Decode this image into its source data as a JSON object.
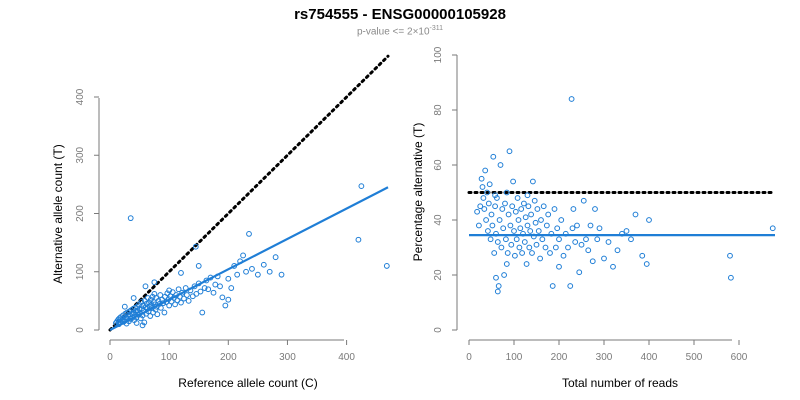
{
  "title": "rs754555 - ENSG00000105928",
  "subtitle": {
    "prefix": "p-value <= 2×10",
    "exponent": "-311"
  },
  "colors": {
    "points": "#1f7ed6",
    "fit": "#1f7ed6",
    "reference": "#000000"
  },
  "chart_data": [
    {
      "type": "scatter",
      "xlabel": "Reference allele count (C)",
      "ylabel": "Alternative allele count (T)",
      "xlim": [
        0,
        470
      ],
      "ylim": [
        0,
        400
      ],
      "xticks": [
        0,
        100,
        200,
        300,
        400
      ],
      "yticks": [
        0,
        100,
        200,
        300,
        400
      ],
      "reference_line": {
        "style": "dotted",
        "slope": 1,
        "intercept": 0,
        "x_range": [
          0,
          470
        ]
      },
      "fit_line": {
        "style": "solid",
        "x": [
          0,
          470
        ],
        "y": [
          0,
          245
        ]
      },
      "points": [
        [
          10,
          12
        ],
        [
          12,
          15
        ],
        [
          14,
          18
        ],
        [
          15,
          14
        ],
        [
          16,
          20
        ],
        [
          17,
          13
        ],
        [
          18,
          22
        ],
        [
          20,
          16
        ],
        [
          21,
          19
        ],
        [
          22,
          25
        ],
        [
          23,
          14
        ],
        [
          25,
          18
        ],
        [
          26,
          28
        ],
        [
          27,
          22
        ],
        [
          28,
          11
        ],
        [
          29,
          30
        ],
        [
          30,
          20
        ],
        [
          31,
          26
        ],
        [
          32,
          15
        ],
        [
          33,
          32
        ],
        [
          34,
          24
        ],
        [
          35,
          19
        ],
        [
          36,
          34
        ],
        [
          37,
          28
        ],
        [
          38,
          21
        ],
        [
          39,
          36
        ],
        [
          40,
          30
        ],
        [
          41,
          17
        ],
        [
          42,
          38
        ],
        [
          43,
          27
        ],
        [
          44,
          33
        ],
        [
          45,
          22
        ],
        [
          46,
          40
        ],
        [
          47,
          31
        ],
        [
          48,
          26
        ],
        [
          49,
          44
        ],
        [
          50,
          35
        ],
        [
          51,
          29
        ],
        [
          52,
          20
        ],
        [
          53,
          48
        ],
        [
          54,
          37
        ],
        [
          55,
          25
        ],
        [
          56,
          42
        ],
        [
          57,
          33
        ],
        [
          58,
          13
        ],
        [
          59,
          50
        ],
        [
          60,
          39
        ],
        [
          61,
          28
        ],
        [
          62,
          45
        ],
        [
          63,
          36
        ],
        [
          64,
          55
        ],
        [
          65,
          32
        ],
        [
          66,
          47
        ],
        [
          67,
          41
        ],
        [
          68,
          24
        ],
        [
          69,
          52
        ],
        [
          70,
          43
        ],
        [
          71,
          38
        ],
        [
          72,
          57
        ],
        [
          73,
          30
        ],
        [
          74,
          48
        ],
        [
          75,
          62
        ],
        [
          76,
          44
        ],
        [
          77,
          35
        ],
        [
          78,
          55
        ],
        [
          79,
          40
        ],
        [
          80,
          27
        ],
        [
          82,
          50
        ],
        [
          84,
          45
        ],
        [
          85,
          60
        ],
        [
          86,
          38
        ],
        [
          88,
          52
        ],
        [
          90,
          46
        ],
        [
          92,
          30
        ],
        [
          93,
          57
        ],
        [
          95,
          48
        ],
        [
          97,
          63
        ],
        [
          99,
          53
        ],
        [
          100,
          42
        ],
        [
          102,
          58
        ],
        [
          104,
          49
        ],
        [
          106,
          65
        ],
        [
          108,
          55
        ],
        [
          110,
          44
        ],
        [
          112,
          60
        ],
        [
          114,
          51
        ],
        [
          116,
          70
        ],
        [
          118,
          57
        ],
        [
          120,
          47
        ],
        [
          122,
          64
        ],
        [
          125,
          54
        ],
        [
          128,
          72
        ],
        [
          130,
          60
        ],
        [
          133,
          50
        ],
        [
          136,
          68
        ],
        [
          140,
          58
        ],
        [
          143,
          75
        ],
        [
          146,
          62
        ],
        [
          150,
          80
        ],
        [
          153,
          66
        ],
        [
          156,
          30
        ],
        [
          160,
          72
        ],
        [
          163,
          85
        ],
        [
          166,
          70
        ],
        [
          170,
          90
        ],
        [
          175,
          64
        ],
        [
          178,
          78
        ],
        [
          182,
          92
        ],
        [
          186,
          75
        ],
        [
          190,
          56
        ],
        [
          195,
          42
        ],
        [
          200,
          88
        ],
        [
          205,
          72
        ],
        [
          210,
          110
        ],
        [
          215,
          95
        ],
        [
          220,
          118
        ],
        [
          225,
          128
        ],
        [
          230,
          100
        ],
        [
          235,
          165
        ],
        [
          240,
          105
        ],
        [
          250,
          95
        ],
        [
          260,
          112
        ],
        [
          270,
          100
        ],
        [
          280,
          125
        ],
        [
          290,
          95
        ],
        [
          35,
          192
        ],
        [
          145,
          143
        ],
        [
          150,
          110
        ],
        [
          100,
          68
        ],
        [
          120,
          98
        ],
        [
          200,
          52
        ],
        [
          420,
          155
        ],
        [
          425,
          247
        ],
        [
          468,
          110
        ],
        [
          25,
          40
        ],
        [
          40,
          55
        ],
        [
          60,
          75
        ],
        [
          75,
          82
        ],
        [
          15,
          10
        ],
        [
          45,
          12
        ],
        [
          55,
          8
        ]
      ]
    },
    {
      "type": "scatter",
      "xlabel": "Total number of reads",
      "ylabel": "Percentage alternative (T)",
      "xlim": [
        0,
        680
      ],
      "ylim": [
        0,
        100
      ],
      "xticks": [
        0,
        100,
        200,
        300,
        400,
        500,
        600
      ],
      "yticks": [
        0,
        20,
        40,
        60,
        80,
        100
      ],
      "reference_line": {
        "style": "dotted",
        "y": 50,
        "x_range": [
          0,
          680
        ]
      },
      "fit_line": {
        "style": "solid",
        "y": 34.5,
        "x_range": [
          0,
          680
        ]
      },
      "points": [
        [
          25,
          45
        ],
        [
          28,
          55
        ],
        [
          30,
          52
        ],
        [
          32,
          48
        ],
        [
          34,
          44
        ],
        [
          36,
          58
        ],
        [
          38,
          40
        ],
        [
          40,
          50
        ],
        [
          42,
          36
        ],
        [
          44,
          46
        ],
        [
          46,
          53
        ],
        [
          48,
          33
        ],
        [
          50,
          42
        ],
        [
          52,
          38
        ],
        [
          54,
          63
        ],
        [
          56,
          28
        ],
        [
          58,
          45
        ],
        [
          60,
          35
        ],
        [
          62,
          48
        ],
        [
          64,
          32
        ],
        [
          66,
          16
        ],
        [
          68,
          40
        ],
        [
          70,
          60
        ],
        [
          72,
          30
        ],
        [
          74,
          44
        ],
        [
          76,
          37
        ],
        [
          78,
          20
        ],
        [
          80,
          46
        ],
        [
          82,
          33
        ],
        [
          84,
          50
        ],
        [
          86,
          28
        ],
        [
          88,
          42
        ],
        [
          90,
          65
        ],
        [
          92,
          38
        ],
        [
          94,
          31
        ],
        [
          96,
          45
        ],
        [
          98,
          54
        ],
        [
          100,
          36
        ],
        [
          102,
          27
        ],
        [
          104,
          43
        ],
        [
          106,
          33
        ],
        [
          108,
          48
        ],
        [
          110,
          40
        ],
        [
          112,
          30
        ],
        [
          114,
          37
        ],
        [
          116,
          44
        ],
        [
          118,
          28
        ],
        [
          120,
          35
        ],
        [
          122,
          46
        ],
        [
          124,
          32
        ],
        [
          126,
          41
        ],
        [
          128,
          24
        ],
        [
          130,
          38
        ],
        [
          132,
          45
        ],
        [
          134,
          30
        ],
        [
          136,
          36
        ],
        [
          138,
          42
        ],
        [
          140,
          28
        ],
        [
          142,
          54
        ],
        [
          144,
          34
        ],
        [
          146,
          47
        ],
        [
          148,
          39
        ],
        [
          150,
          31
        ],
        [
          152,
          44
        ],
        [
          155,
          36
        ],
        [
          158,
          26
        ],
        [
          160,
          40
        ],
        [
          163,
          33
        ],
        [
          166,
          45
        ],
        [
          170,
          30
        ],
        [
          173,
          38
        ],
        [
          176,
          42
        ],
        [
          180,
          28
        ],
        [
          183,
          35
        ],
        [
          186,
          16
        ],
        [
          190,
          44
        ],
        [
          193,
          30
        ],
        [
          196,
          37
        ],
        [
          200,
          33
        ],
        [
          205,
          40
        ],
        [
          210,
          27
        ],
        [
          215,
          35
        ],
        [
          220,
          30
        ],
        [
          225,
          16
        ],
        [
          228,
          84
        ],
        [
          232,
          44
        ],
        [
          236,
          32
        ],
        [
          240,
          38
        ],
        [
          245,
          21
        ],
        [
          250,
          31
        ],
        [
          255,
          47
        ],
        [
          260,
          33
        ],
        [
          265,
          29
        ],
        [
          270,
          38
        ],
        [
          275,
          25
        ],
        [
          280,
          44
        ],
        [
          285,
          33
        ],
        [
          290,
          37
        ],
        [
          300,
          26
        ],
        [
          310,
          32
        ],
        [
          320,
          23
        ],
        [
          330,
          29
        ],
        [
          340,
          35
        ],
        [
          350,
          36
        ],
        [
          360,
          33
        ],
        [
          370,
          42
        ],
        [
          385,
          27
        ],
        [
          395,
          24
        ],
        [
          400,
          40
        ],
        [
          580,
          27
        ],
        [
          582,
          19
        ],
        [
          675,
          37
        ],
        [
          18,
          43
        ],
        [
          22,
          38
        ],
        [
          60,
          19
        ],
        [
          64,
          14
        ],
        [
          58,
          49
        ],
        [
          84,
          24
        ],
        [
          130,
          49
        ],
        [
          200,
          23
        ],
        [
          230,
          37
        ]
      ]
    }
  ]
}
